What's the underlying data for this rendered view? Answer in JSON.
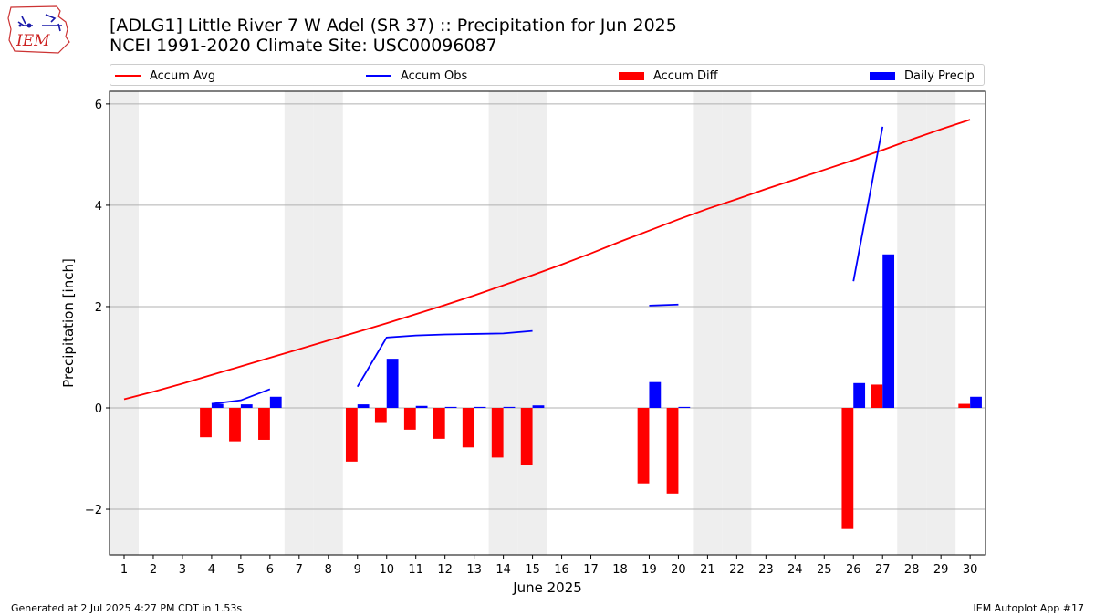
{
  "logo": {
    "text": "IEM"
  },
  "title_line1": "[ADLG1] Little River 7 W Adel (SR 37) :: Precipitation for Jun 2025",
  "title_line2": "NCEI 1991-2020 Climate Site: USC00096087",
  "footer_left": "Generated at 2 Jul 2025 4:27 PM CDT in 1.53s",
  "footer_right": "IEM Autoplot App #17",
  "colors": {
    "accum_avg": "#ff0000",
    "accum_obs": "#0000ff",
    "accum_diff": "#ff0000",
    "daily_precip": "#0000ff",
    "weekend_band": "#eeeeee",
    "grid": "#b0b0b0"
  },
  "chart_data": {
    "type": "bar",
    "xlabel": "June 2025",
    "ylabel": "Precipitation [inch]",
    "ylim": [
      -2.9,
      6.25
    ],
    "yticks": [
      -2,
      0,
      2,
      4,
      6
    ],
    "ytick_labels": [
      "−2",
      "0",
      "2",
      "4",
      "6"
    ],
    "grid": "horizontal",
    "legend_position": "top",
    "days": [
      1,
      2,
      3,
      4,
      5,
      6,
      7,
      8,
      9,
      10,
      11,
      12,
      13,
      14,
      15,
      16,
      17,
      18,
      19,
      20,
      21,
      22,
      23,
      24,
      25,
      26,
      27,
      28,
      29,
      30
    ],
    "weekend_days": [
      1,
      7,
      8,
      14,
      15,
      21,
      22,
      28,
      29
    ],
    "legend": [
      "Accum Avg",
      "Accum Obs",
      "Accum Diff",
      "Daily Precip"
    ],
    "series": [
      {
        "name": "Accum Avg",
        "kind": "line",
        "values": [
          0.17,
          0.32,
          0.48,
          0.65,
          0.82,
          0.99,
          1.16,
          1.33,
          1.5,
          1.67,
          1.85,
          2.03,
          2.22,
          2.42,
          2.62,
          2.83,
          3.05,
          3.28,
          3.5,
          3.72,
          3.93,
          4.12,
          4.32,
          4.51,
          4.7,
          4.89,
          5.09,
          5.3,
          5.5,
          5.69
        ]
      },
      {
        "name": "Accum Obs",
        "kind": "line",
        "segments": [
          {
            "days": [
              4,
              5,
              6
            ],
            "values": [
              0.08,
              0.15,
              0.37
            ]
          },
          {
            "days": [
              9,
              10,
              11,
              12,
              13,
              14,
              15
            ],
            "values": [
              0.42,
              1.39,
              1.43,
              1.45,
              1.46,
              1.47,
              1.52
            ]
          },
          {
            "days": [
              19,
              20
            ],
            "values": [
              2.02,
              2.04
            ]
          },
          {
            "days": [
              26,
              27
            ],
            "values": [
              2.5,
              5.55
            ]
          }
        ]
      },
      {
        "name": "Accum Diff",
        "kind": "bar",
        "values": [
          null,
          null,
          null,
          -0.58,
          -0.66,
          -0.63,
          null,
          null,
          -1.06,
          -0.28,
          -0.43,
          -0.61,
          -0.78,
          -0.98,
          -1.13,
          null,
          null,
          null,
          -1.49,
          -1.69,
          null,
          null,
          null,
          null,
          null,
          -2.39,
          0.46,
          null,
          null,
          0.08
        ]
      },
      {
        "name": "Daily Precip",
        "kind": "bar",
        "values": [
          null,
          null,
          null,
          0.08,
          0.07,
          0.22,
          null,
          null,
          0.07,
          0.97,
          0.04,
          0.02,
          0.02,
          0.02,
          0.05,
          null,
          null,
          null,
          0.51,
          0.02,
          null,
          null,
          null,
          null,
          null,
          0.49,
          3.03,
          null,
          null,
          0.22
        ]
      }
    ]
  }
}
